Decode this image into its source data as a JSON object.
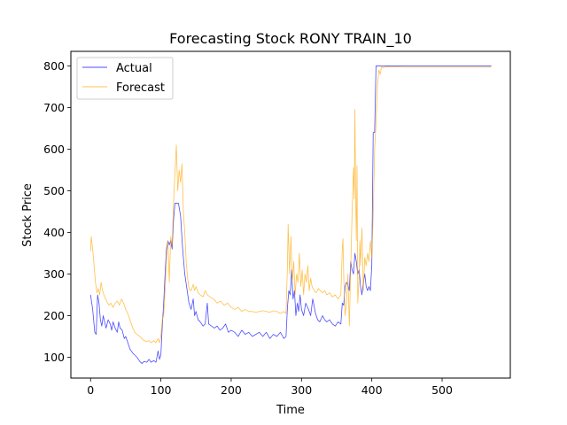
{
  "chart_data": {
    "type": "line",
    "title": "Forecasting Stock RONY TRAIN_10",
    "xlabel": "Time",
    "ylabel": "Stock Price",
    "xlim": [
      -28,
      597
    ],
    "ylim": [
      50,
      835
    ],
    "xticks": [
      0,
      100,
      200,
      300,
      400,
      500
    ],
    "yticks": [
      100,
      200,
      300,
      400,
      500,
      600,
      700,
      800
    ],
    "grid": false,
    "legend_position": "top-left",
    "series": [
      {
        "name": "Actual",
        "color": "#0000ff",
        "points": [
          [
            0,
            250
          ],
          [
            3,
            215
          ],
          [
            6,
            160
          ],
          [
            8,
            155
          ],
          [
            10,
            250
          ],
          [
            12,
            230
          ],
          [
            14,
            190
          ],
          [
            16,
            175
          ],
          [
            18,
            200
          ],
          [
            20,
            185
          ],
          [
            22,
            170
          ],
          [
            25,
            190
          ],
          [
            28,
            180
          ],
          [
            30,
            165
          ],
          [
            32,
            185
          ],
          [
            35,
            170
          ],
          [
            38,
            160
          ],
          [
            40,
            185
          ],
          [
            42,
            170
          ],
          [
            45,
            165
          ],
          [
            48,
            145
          ],
          [
            50,
            150
          ],
          [
            53,
            135
          ],
          [
            56,
            120
          ],
          [
            60,
            110
          ],
          [
            63,
            105
          ],
          [
            66,
            100
          ],
          [
            70,
            90
          ],
          [
            73,
            85
          ],
          [
            76,
            90
          ],
          [
            80,
            88
          ],
          [
            83,
            95
          ],
          [
            86,
            88
          ],
          [
            90,
            92
          ],
          [
            93,
            88
          ],
          [
            96,
            115
          ],
          [
            98,
            95
          ],
          [
            100,
            105
          ],
          [
            102,
            175
          ],
          [
            104,
            230
          ],
          [
            106,
            300
          ],
          [
            108,
            360
          ],
          [
            110,
            380
          ],
          [
            112,
            370
          ],
          [
            114,
            380
          ],
          [
            116,
            360
          ],
          [
            118,
            430
          ],
          [
            120,
            470
          ],
          [
            122,
            470
          ],
          [
            125,
            470
          ],
          [
            128,
            440
          ],
          [
            131,
            360
          ],
          [
            134,
            300
          ],
          [
            137,
            265
          ],
          [
            140,
            230
          ],
          [
            143,
            215
          ],
          [
            146,
            240
          ],
          [
            148,
            200
          ],
          [
            150,
            210
          ],
          [
            153,
            190
          ],
          [
            156,
            185
          ],
          [
            160,
            175
          ],
          [
            163,
            180
          ],
          [
            166,
            230
          ],
          [
            168,
            180
          ],
          [
            172,
            175
          ],
          [
            176,
            170
          ],
          [
            180,
            175
          ],
          [
            184,
            165
          ],
          [
            188,
            170
          ],
          [
            192,
            180
          ],
          [
            196,
            160
          ],
          [
            200,
            165
          ],
          [
            205,
            160
          ],
          [
            210,
            150
          ],
          [
            215,
            165
          ],
          [
            220,
            155
          ],
          [
            225,
            160
          ],
          [
            230,
            150
          ],
          [
            235,
            155
          ],
          [
            240,
            160
          ],
          [
            245,
            150
          ],
          [
            250,
            160
          ],
          [
            255,
            145
          ],
          [
            260,
            155
          ],
          [
            265,
            150
          ],
          [
            270,
            160
          ],
          [
            275,
            145
          ],
          [
            278,
            150
          ],
          [
            280,
            220
          ],
          [
            282,
            260
          ],
          [
            284,
            250
          ],
          [
            286,
            310
          ],
          [
            288,
            240
          ],
          [
            290,
            260
          ],
          [
            292,
            200
          ],
          [
            294,
            230
          ],
          [
            296,
            210
          ],
          [
            298,
            250
          ],
          [
            300,
            215
          ],
          [
            303,
            200
          ],
          [
            306,
            230
          ],
          [
            310,
            215
          ],
          [
            313,
            200
          ],
          [
            316,
            240
          ],
          [
            320,
            205
          ],
          [
            323,
            190
          ],
          [
            326,
            185
          ],
          [
            330,
            200
          ],
          [
            333,
            190
          ],
          [
            336,
            185
          ],
          [
            340,
            190
          ],
          [
            344,
            180
          ],
          [
            348,
            175
          ],
          [
            352,
            185
          ],
          [
            356,
            180
          ],
          [
            358,
            230
          ],
          [
            360,
            225
          ],
          [
            362,
            270
          ],
          [
            364,
            280
          ],
          [
            366,
            275
          ],
          [
            368,
            260
          ],
          [
            370,
            330
          ],
          [
            372,
            310
          ],
          [
            374,
            300
          ],
          [
            376,
            350
          ],
          [
            378,
            330
          ],
          [
            380,
            300
          ],
          [
            382,
            310
          ],
          [
            384,
            270
          ],
          [
            386,
            250
          ],
          [
            388,
            280
          ],
          [
            390,
            300
          ],
          [
            392,
            270
          ],
          [
            394,
            260
          ],
          [
            396,
            270
          ],
          [
            398,
            260
          ],
          [
            400,
            320
          ],
          [
            402,
            640
          ],
          [
            404,
            640
          ],
          [
            406,
            800
          ],
          [
            410,
            800
          ],
          [
            450,
            800
          ],
          [
            500,
            800
          ],
          [
            570,
            800
          ]
        ]
      },
      {
        "name": "Forecast",
        "color": "#ffa500",
        "points": [
          [
            0,
            355
          ],
          [
            1,
            390
          ],
          [
            3,
            360
          ],
          [
            5,
            320
          ],
          [
            7,
            280
          ],
          [
            9,
            255
          ],
          [
            11,
            265
          ],
          [
            13,
            250
          ],
          [
            15,
            280
          ],
          [
            17,
            260
          ],
          [
            20,
            245
          ],
          [
            23,
            235
          ],
          [
            26,
            225
          ],
          [
            29,
            230
          ],
          [
            32,
            220
          ],
          [
            35,
            230
          ],
          [
            38,
            235
          ],
          [
            41,
            225
          ],
          [
            44,
            240
          ],
          [
            47,
            230
          ],
          [
            50,
            215
          ],
          [
            53,
            205
          ],
          [
            56,
            190
          ],
          [
            60,
            170
          ],
          [
            63,
            160
          ],
          [
            66,
            155
          ],
          [
            70,
            150
          ],
          [
            73,
            145
          ],
          [
            76,
            140
          ],
          [
            80,
            138
          ],
          [
            83,
            140
          ],
          [
            86,
            135
          ],
          [
            90,
            140
          ],
          [
            93,
            135
          ],
          [
            96,
            145
          ],
          [
            98,
            135
          ],
          [
            100,
            150
          ],
          [
            102,
            190
          ],
          [
            104,
            200
          ],
          [
            106,
            260
          ],
          [
            108,
            340
          ],
          [
            110,
            380
          ],
          [
            112,
            280
          ],
          [
            114,
            390
          ],
          [
            116,
            370
          ],
          [
            118,
            470
          ],
          [
            120,
            540
          ],
          [
            122,
            610
          ],
          [
            124,
            500
          ],
          [
            126,
            550
          ],
          [
            128,
            520
          ],
          [
            130,
            565
          ],
          [
            132,
            450
          ],
          [
            134,
            400
          ],
          [
            136,
            330
          ],
          [
            138,
            290
          ],
          [
            140,
            265
          ],
          [
            143,
            260
          ],
          [
            146,
            275
          ],
          [
            148,
            260
          ],
          [
            150,
            270
          ],
          [
            153,
            255
          ],
          [
            156,
            250
          ],
          [
            160,
            245
          ],
          [
            163,
            260
          ],
          [
            166,
            250
          ],
          [
            170,
            245
          ],
          [
            175,
            240
          ],
          [
            180,
            230
          ],
          [
            185,
            235
          ],
          [
            190,
            225
          ],
          [
            195,
            230
          ],
          [
            200,
            220
          ],
          [
            205,
            215
          ],
          [
            210,
            220
          ],
          [
            215,
            210
          ],
          [
            220,
            215
          ],
          [
            225,
            210
          ],
          [
            230,
            210
          ],
          [
            235,
            208
          ],
          [
            240,
            210
          ],
          [
            245,
            212
          ],
          [
            250,
            210
          ],
          [
            255,
            208
          ],
          [
            260,
            212
          ],
          [
            265,
            210
          ],
          [
            270,
            205
          ],
          [
            275,
            210
          ],
          [
            278,
            205
          ],
          [
            280,
            320
          ],
          [
            281,
            420
          ],
          [
            283,
            300
          ],
          [
            285,
            390
          ],
          [
            287,
            280
          ],
          [
            289,
            330
          ],
          [
            291,
            250
          ],
          [
            293,
            300
          ],
          [
            295,
            280
          ],
          [
            297,
            350
          ],
          [
            299,
            270
          ],
          [
            301,
            310
          ],
          [
            303,
            250
          ],
          [
            305,
            300
          ],
          [
            307,
            280
          ],
          [
            309,
            320
          ],
          [
            311,
            260
          ],
          [
            313,
            290
          ],
          [
            315,
            270
          ],
          [
            318,
            260
          ],
          [
            321,
            255
          ],
          [
            324,
            265
          ],
          [
            327,
            260
          ],
          [
            330,
            255
          ],
          [
            333,
            260
          ],
          [
            336,
            250
          ],
          [
            340,
            255
          ],
          [
            344,
            245
          ],
          [
            348,
            250
          ],
          [
            352,
            240
          ],
          [
            356,
            250
          ],
          [
            358,
            360
          ],
          [
            359,
            385
          ],
          [
            360,
            300
          ],
          [
            362,
            200
          ],
          [
            364,
            230
          ],
          [
            366,
            300
          ],
          [
            368,
            175
          ],
          [
            370,
            310
          ],
          [
            372,
            450
          ],
          [
            374,
            555
          ],
          [
            375,
            480
          ],
          [
            376,
            695
          ],
          [
            377,
            500
          ],
          [
            378,
            380
          ],
          [
            379,
            560
          ],
          [
            380,
            230
          ],
          [
            381,
            260
          ],
          [
            382,
            300
          ],
          [
            383,
            380
          ],
          [
            384,
            320
          ],
          [
            386,
            410
          ],
          [
            388,
            260
          ],
          [
            390,
            340
          ],
          [
            392,
            320
          ],
          [
            394,
            350
          ],
          [
            396,
            330
          ],
          [
            398,
            380
          ],
          [
            400,
            340
          ],
          [
            402,
            440
          ],
          [
            404,
            600
          ],
          [
            406,
            660
          ],
          [
            408,
            750
          ],
          [
            410,
            790
          ],
          [
            412,
            780
          ],
          [
            414,
            800
          ],
          [
            416,
            795
          ],
          [
            420,
            798
          ],
          [
            450,
            797
          ],
          [
            500,
            797
          ],
          [
            570,
            797
          ]
        ]
      }
    ]
  }
}
